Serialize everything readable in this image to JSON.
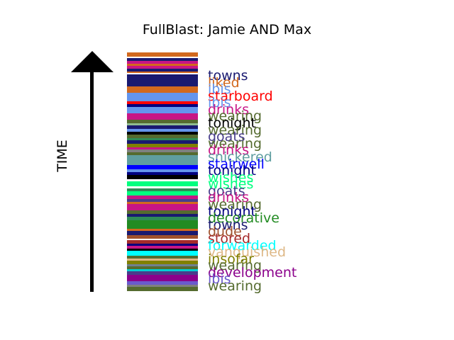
{
  "chart_data": {
    "type": "bar",
    "title": "FullBlast: Jamie AND Max",
    "ylabel": "TIME",
    "stripes": [
      {
        "color": "#d2691e",
        "h": 5
      },
      {
        "color": "#ffffff",
        "h": 2
      },
      {
        "color": "#191970",
        "h": 3
      },
      {
        "color": "#c71585",
        "h": 4
      },
      {
        "color": "#d2691e",
        "h": 2
      },
      {
        "color": "#c71585",
        "h": 4
      },
      {
        "color": "#191970",
        "h": 3
      },
      {
        "color": "#d2691e",
        "h": 2
      },
      {
        "color": "#ffffff",
        "h": 2
      },
      {
        "color": "#191970",
        "h": 14
      },
      {
        "color": "#d2691e",
        "h": 8
      },
      {
        "color": "#6495ed",
        "h": 10
      },
      {
        "color": "#ff0000",
        "h": 4
      },
      {
        "color": "#000080",
        "h": 3
      },
      {
        "color": "#6495ed",
        "h": 8
      },
      {
        "color": "#c71585",
        "h": 8
      },
      {
        "color": "#556b2f",
        "h": 4
      },
      {
        "color": "#8fbc8f",
        "h": 3
      },
      {
        "color": "#191970",
        "h": 4
      },
      {
        "color": "#6495ed",
        "h": 3
      },
      {
        "color": "#000000",
        "h": 4
      },
      {
        "color": "#556b2f",
        "h": 4
      },
      {
        "color": "#2e8b57",
        "h": 3
      },
      {
        "color": "#191970",
        "h": 4
      },
      {
        "color": "#808000",
        "h": 4
      },
      {
        "color": "#c71585",
        "h": 3
      },
      {
        "color": "#808080",
        "h": 3
      },
      {
        "color": "#556b2f",
        "h": 4
      },
      {
        "color": "#5f9ea0",
        "h": 12
      },
      {
        "color": "#0000ff",
        "h": 5
      },
      {
        "color": "#6495ed",
        "h": 3
      },
      {
        "color": "#000080",
        "h": 4
      },
      {
        "color": "#000000",
        "h": 5
      },
      {
        "color": "#ffffff",
        "h": 3
      },
      {
        "color": "#00ff7f",
        "h": 6
      },
      {
        "color": "#ffffff",
        "h": 2
      },
      {
        "color": "#2e8b57",
        "h": 4
      },
      {
        "color": "#00ff7f",
        "h": 5
      },
      {
        "color": "#c71585",
        "h": 4
      },
      {
        "color": "#483d8b",
        "h": 4
      },
      {
        "color": "#d2691e",
        "h": 2
      },
      {
        "color": "#c71585",
        "h": 8
      },
      {
        "color": "#556b2f",
        "h": 4
      },
      {
        "color": "#191970",
        "h": 4
      },
      {
        "color": "#2e8b57",
        "h": 4
      },
      {
        "color": "#228b22",
        "h": 10
      },
      {
        "color": "#d2691e",
        "h": 3
      },
      {
        "color": "#191970",
        "h": 5
      },
      {
        "color": "#a0522d",
        "h": 4
      },
      {
        "color": "#ffffff",
        "h": 2
      },
      {
        "color": "#a52a2a",
        "h": 4
      },
      {
        "color": "#000080",
        "h": 3
      },
      {
        "color": "#c71585",
        "h": 3
      },
      {
        "color": "#000000",
        "h": 3
      },
      {
        "color": "#00ffff",
        "h": 6
      },
      {
        "color": "#556b2f",
        "h": 3
      },
      {
        "color": "#deb887",
        "h": 3
      },
      {
        "color": "#808000",
        "h": 4
      },
      {
        "color": "#708090",
        "h": 3
      },
      {
        "color": "#556b2f",
        "h": 3
      },
      {
        "color": "#00ced1",
        "h": 3
      },
      {
        "color": "#483d8b",
        "h": 4
      },
      {
        "color": "#8b008b",
        "h": 8
      },
      {
        "color": "#6a5acd",
        "h": 4
      },
      {
        "color": "#808080",
        "h": 3
      },
      {
        "color": "#556b2f",
        "h": 5
      }
    ],
    "labels": [
      {
        "text": "towns",
        "color": "#191970"
      },
      {
        "text": "liked",
        "color": "#d2691e"
      },
      {
        "text": "ibis",
        "color": "#6495ed"
      },
      {
        "text": "starboard",
        "color": "#ff0000"
      },
      {
        "text": "ibis",
        "color": "#6495ed"
      },
      {
        "text": "drinks",
        "color": "#c71585"
      },
      {
        "text": "wearing",
        "color": "#556b2f"
      },
      {
        "text": "tonight",
        "color": "#000000"
      },
      {
        "text": "wearing",
        "color": "#556b2f"
      },
      {
        "text": "goats",
        "color": "#483d8b"
      },
      {
        "text": "wearing",
        "color": "#556b2f"
      },
      {
        "text": "drinks",
        "color": "#c71585"
      },
      {
        "text": "snickered",
        "color": "#5f9ea0"
      },
      {
        "text": "stairwell",
        "color": "#0000ff"
      },
      {
        "text": "tonight",
        "color": "#000080"
      },
      {
        "text": "wishes",
        "color": "#00ff7f"
      },
      {
        "text": "wishes",
        "color": "#00ff7f"
      },
      {
        "text": "goats",
        "color": "#483d8b"
      },
      {
        "text": "drinks",
        "color": "#c71585"
      },
      {
        "text": "wearing",
        "color": "#556b2f"
      },
      {
        "text": "tonight",
        "color": "#000080"
      },
      {
        "text": "decorative",
        "color": "#228b22"
      },
      {
        "text": "towns",
        "color": "#191970"
      },
      {
        "text": "dude",
        "color": "#a0522d"
      },
      {
        "text": "stored",
        "color": "#a52a2a"
      },
      {
        "text": "forwarded",
        "color": "#00ffff"
      },
      {
        "text": "vanquished",
        "color": "#deb887"
      },
      {
        "text": "insofar",
        "color": "#808000"
      },
      {
        "text": "wearing",
        "color": "#556b2f"
      },
      {
        "text": "development",
        "color": "#8b008b"
      },
      {
        "text": "ibis",
        "color": "#6a5acd"
      },
      {
        "text": "wearing",
        "color": "#556b2f"
      }
    ]
  }
}
